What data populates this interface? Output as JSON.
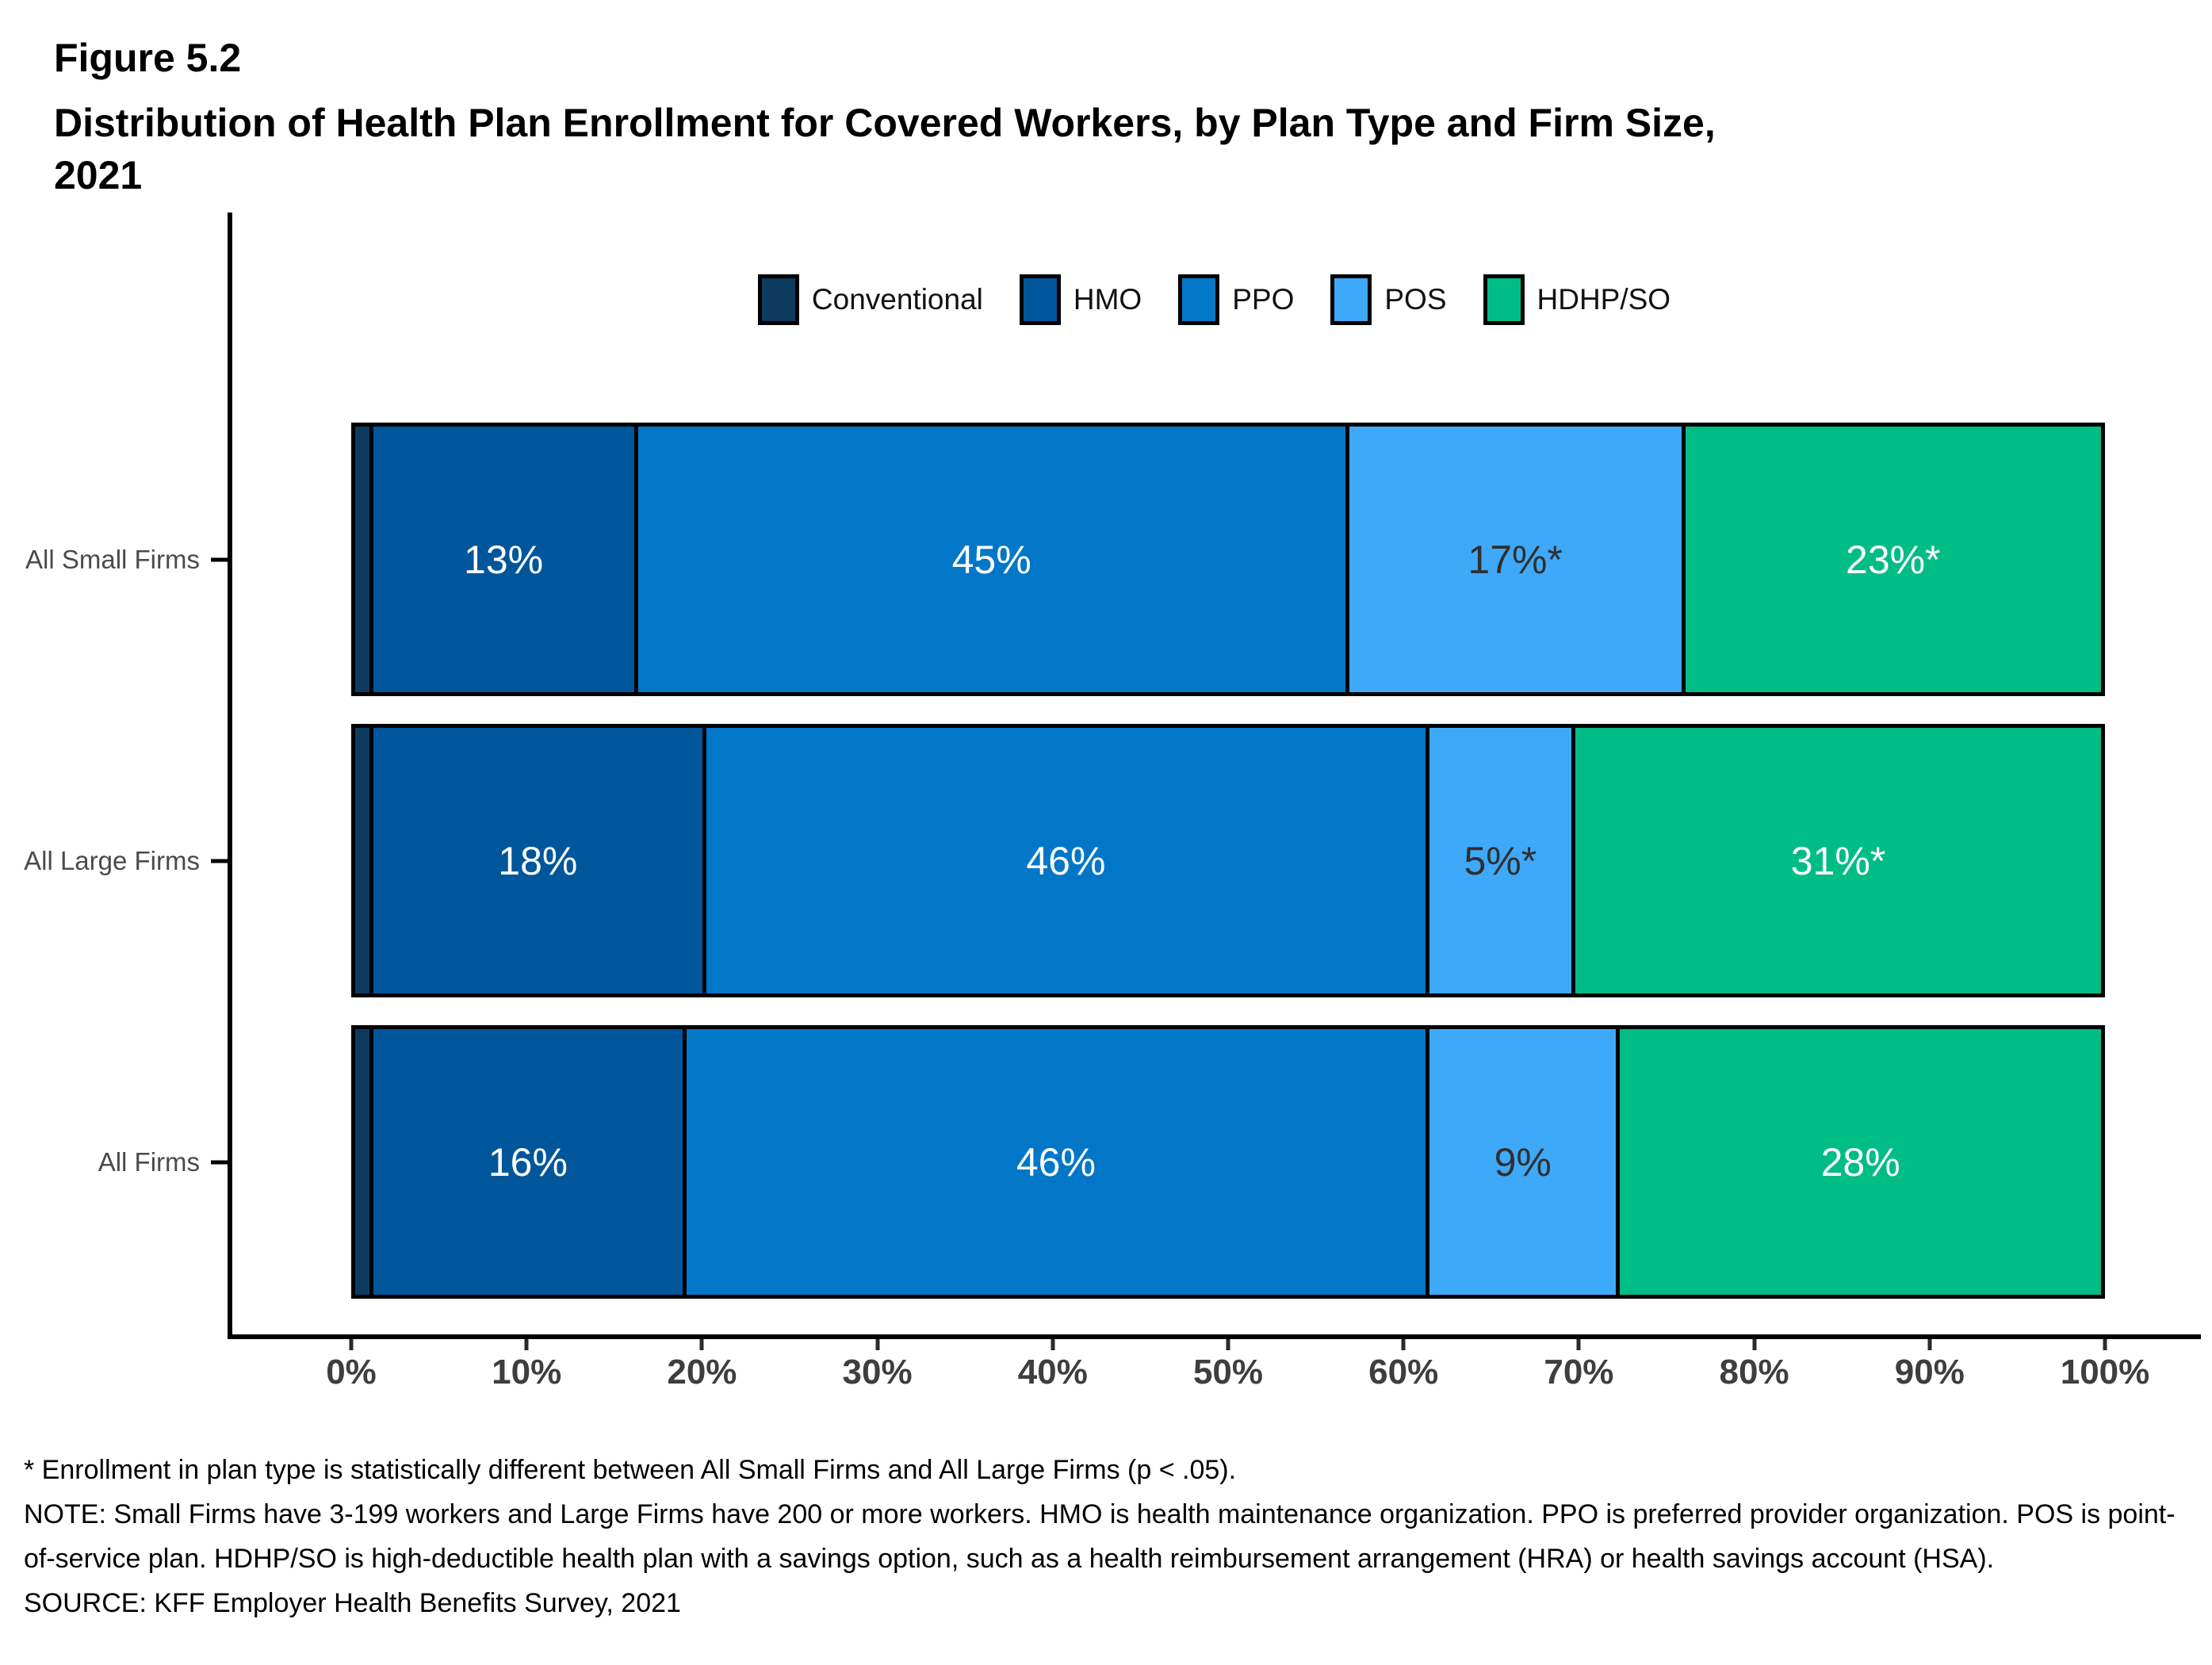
{
  "figure": {
    "number": "Figure 5.2",
    "title_line1": "Distribution of Health Plan Enrollment for Covered Workers, by Plan Type and Firm Size,",
    "title_line2": "2021"
  },
  "chart_data": {
    "type": "bar",
    "orientation": "horizontal",
    "stacked": true,
    "grid": false,
    "legend_position": "top",
    "categories": [
      "All Small Firms",
      "All Large Firms",
      "All Firms"
    ],
    "series": [
      {
        "name": "Conventional",
        "color": "#0d3a5f",
        "values": [
          1,
          1,
          1
        ],
        "labels": [
          "",
          "",
          ""
        ]
      },
      {
        "name": "HMO",
        "color": "#00569b",
        "values": [
          13,
          18,
          16
        ],
        "labels": [
          "13%",
          "18%",
          "16%"
        ],
        "label_color": "#ffffff"
      },
      {
        "name": "PPO",
        "color": "#0277c8",
        "values": [
          45,
          46,
          46
        ],
        "labels": [
          "45%",
          "46%",
          "46%"
        ],
        "label_color": "#ffffff"
      },
      {
        "name": "POS",
        "color": "#3fa9f9",
        "values": [
          17,
          5,
          9
        ],
        "labels": [
          "17%*",
          "5%*",
          "9%"
        ],
        "label_color": "#2f2f2f"
      },
      {
        "name": "HDHP/SO",
        "color": "#00bc85",
        "values": [
          23,
          31,
          28
        ],
        "labels": [
          "23%*",
          "31%*",
          "28%"
        ],
        "label_color": "#ffffff"
      }
    ],
    "xlabel": "",
    "ylabel": "",
    "xlim": [
      0,
      100
    ],
    "x_ticks": [
      "0%",
      "10%",
      "20%",
      "30%",
      "40%",
      "50%",
      "60%",
      "70%",
      "80%",
      "90%",
      "100%"
    ]
  },
  "footnotes": {
    "asterisk": "* Enrollment in plan type is statistically different between All Small Firms and All Large Firms (p < .05).",
    "note": "NOTE: Small Firms have 3-199 workers and Large Firms have 200 or more workers. HMO is health maintenance organization. PPO is preferred provider organization. POS is point-of-service plan. HDHP/SO is high-deductible health plan with a savings option, such as a health reimbursement arrangement (HRA) or health savings account (HSA).",
    "source": "SOURCE: KFF Employer Health Benefits Survey, 2021"
  }
}
